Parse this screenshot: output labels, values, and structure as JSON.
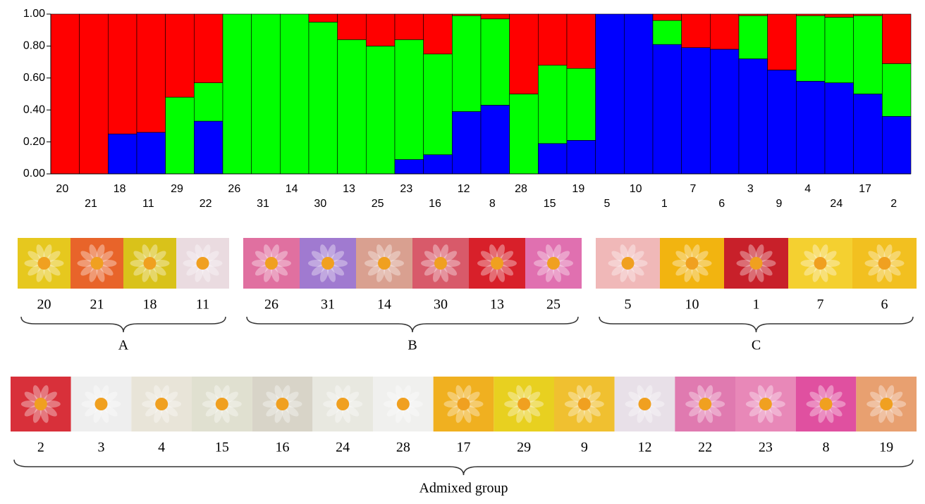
{
  "chart_data": {
    "type": "stacked_bar",
    "categories": [
      "20",
      "21",
      "18",
      "11",
      "29",
      "22",
      "26",
      "31",
      "14",
      "30",
      "13",
      "25",
      "23",
      "16",
      "12",
      "8",
      "28",
      "15",
      "19",
      "5",
      "10",
      "1",
      "7",
      "6",
      "3",
      "9",
      "4",
      "24",
      "17",
      "2"
    ],
    "series": [
      {
        "color": "#0000ff",
        "values": [
          0,
          0,
          0.25,
          0.26,
          0,
          0.33,
          0,
          0,
          0,
          0,
          0,
          0,
          0.09,
          0.12,
          0.39,
          0.43,
          0,
          0.19,
          0.21,
          1,
          1,
          0.81,
          0.79,
          0.78,
          0.72,
          0.65,
          0.58,
          0.57,
          0.5,
          0.36
        ]
      },
      {
        "color": "#00ff00",
        "values": [
          0,
          0,
          0,
          0,
          0.48,
          0.24,
          1,
          1,
          1,
          0.95,
          0.84,
          0.8,
          0.75,
          0.63,
          0.6,
          0.54,
          0.5,
          0.49,
          0.45,
          0,
          0,
          0.15,
          0,
          0,
          0.27,
          0,
          0.41,
          0.41,
          0.49,
          0.33
        ]
      },
      {
        "color": "#ff0000",
        "values": [
          1,
          1,
          0.75,
          0.74,
          0.52,
          0.43,
          0,
          0,
          0,
          0.05,
          0.16,
          0.2,
          0.16,
          0.25,
          0.01,
          0.03,
          0.5,
          0.32,
          0.34,
          0,
          0,
          0.04,
          0.21,
          0.22,
          0.01,
          0.35,
          0.01,
          0.02,
          0.01,
          0.31
        ]
      }
    ],
    "ylim": [
      0,
      1
    ],
    "yticks": [
      {
        "value": 0,
        "label": "0.00"
      },
      {
        "value": 0.2,
        "label": "0.20"
      },
      {
        "value": 0.4,
        "label": "0.40"
      },
      {
        "value": 0.6,
        "label": "0.60"
      },
      {
        "value": 0.8,
        "label": "0.80"
      },
      {
        "value": 1,
        "label": "1.00"
      }
    ]
  },
  "groups": [
    {
      "name": "A",
      "members": [
        20,
        21,
        18,
        11
      ]
    },
    {
      "name": "B",
      "members": [
        26,
        31,
        14,
        30,
        13,
        25
      ]
    },
    {
      "name": "C",
      "members": [
        5,
        10,
        1,
        7,
        6
      ]
    },
    {
      "name": "Admixed group",
      "members": [
        2,
        3,
        4,
        15,
        16,
        24,
        28,
        17,
        29,
        9,
        12,
        22,
        23,
        8,
        19
      ]
    }
  ]
}
